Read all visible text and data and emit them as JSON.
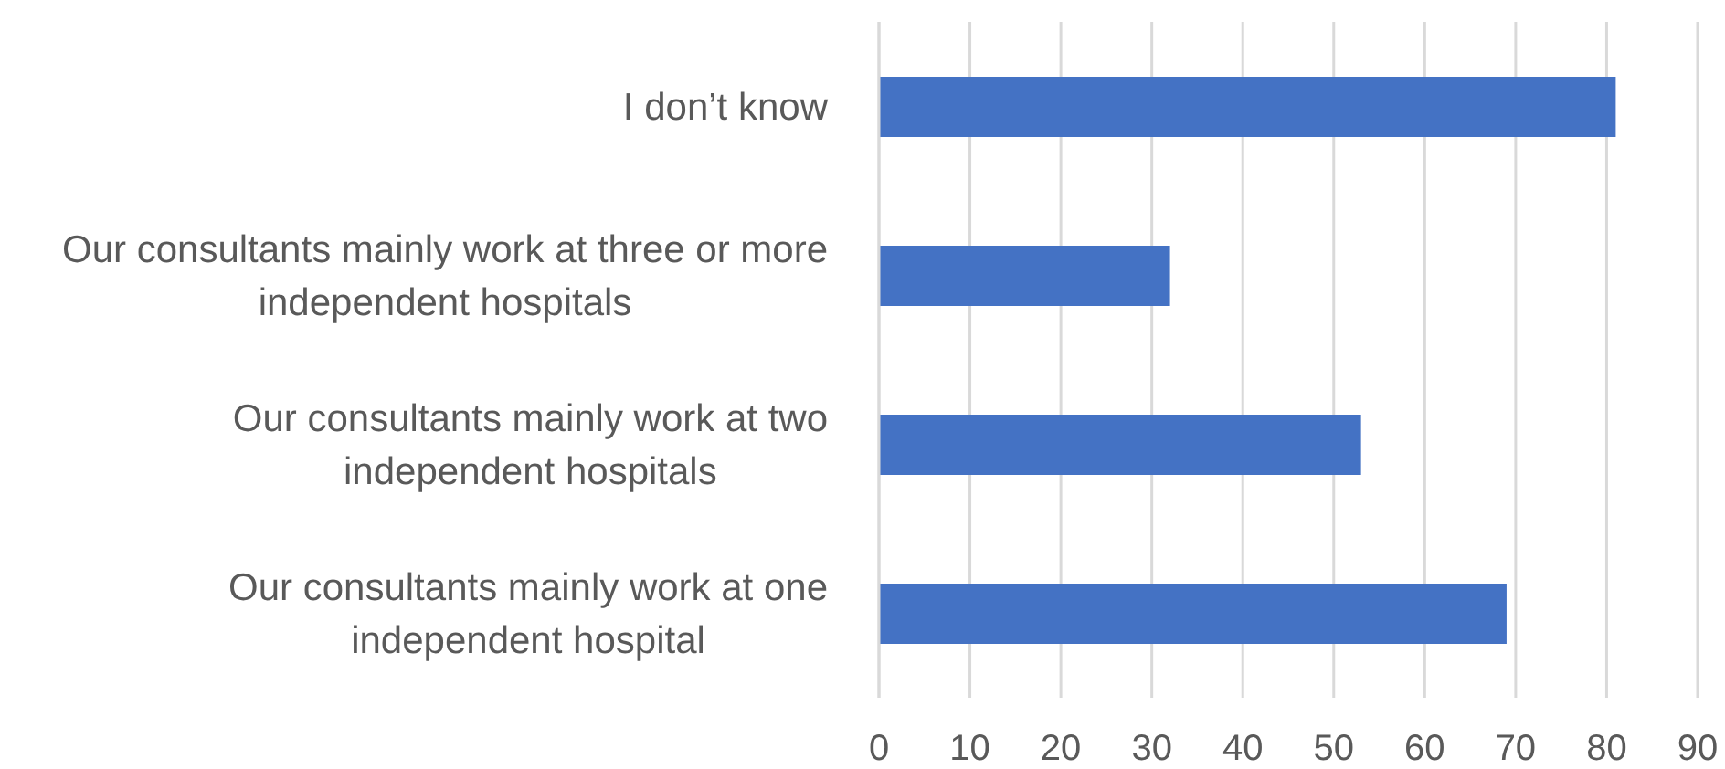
{
  "chart_data": {
    "type": "bar",
    "orientation": "horizontal",
    "categories": [
      "I don’t know",
      "Our consultants mainly work at three or more independent hospitals",
      "Our consultants mainly work at two independent hospitals",
      "Our consultants mainly work at one independent hospital"
    ],
    "values": [
      81,
      32,
      53,
      69
    ],
    "color": "#4472c4",
    "xlim": [
      0,
      90
    ],
    "xticks": [
      0,
      10,
      20,
      30,
      40,
      50,
      60,
      70,
      80,
      90
    ],
    "grid": "x"
  }
}
